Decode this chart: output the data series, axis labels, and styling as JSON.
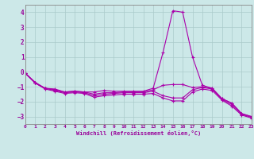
{
  "xlabel": "Windchill (Refroidissement éolien,°C)",
  "bg_color": "#cce8e8",
  "grid_color": "#aacaca",
  "line_color": "#aa00aa",
  "x_range": [
    0,
    23
  ],
  "y_range": [
    -3.5,
    4.5
  ],
  "yticks": [
    -3,
    -2,
    -1,
    0,
    1,
    2,
    3,
    4
  ],
  "xticks": [
    0,
    1,
    2,
    3,
    4,
    5,
    6,
    7,
    8,
    9,
    10,
    11,
    12,
    13,
    14,
    15,
    16,
    17,
    18,
    19,
    20,
    21,
    22,
    23
  ],
  "series": [
    [
      0,
      -0.1,
      1,
      -0.7,
      2,
      -1.1,
      3,
      -1.15,
      4,
      -1.35,
      5,
      -1.3,
      6,
      -1.35,
      7,
      -1.35,
      8,
      -1.25,
      9,
      -1.3,
      10,
      -1.3,
      11,
      -1.3,
      12,
      -1.3,
      13,
      -1.1,
      14,
      1.3,
      15,
      4.1,
      16,
      4.0,
      17,
      1.0,
      18,
      -0.9,
      19,
      -1.1,
      20,
      -1.8,
      21,
      -2.1,
      22,
      -2.8,
      23,
      -3.0
    ],
    [
      0,
      -0.1,
      1,
      -0.75,
      2,
      -1.1,
      3,
      -1.2,
      4,
      -1.35,
      5,
      -1.3,
      6,
      -1.35,
      7,
      -1.5,
      8,
      -1.4,
      9,
      -1.4,
      10,
      -1.35,
      11,
      -1.35,
      12,
      -1.35,
      13,
      -1.2,
      14,
      -0.9,
      15,
      -0.85,
      16,
      -0.85,
      17,
      -1.05,
      18,
      -1.0,
      19,
      -1.1,
      20,
      -1.8,
      21,
      -2.1,
      22,
      -2.8,
      23,
      -3.0
    ],
    [
      0,
      -0.1,
      1,
      -0.75,
      2,
      -1.1,
      3,
      -1.25,
      4,
      -1.4,
      5,
      -1.35,
      6,
      -1.4,
      7,
      -1.6,
      8,
      -1.5,
      9,
      -1.45,
      10,
      -1.4,
      11,
      -1.4,
      12,
      -1.4,
      13,
      -1.3,
      14,
      -1.6,
      15,
      -1.75,
      16,
      -1.75,
      17,
      -1.2,
      18,
      -1.05,
      19,
      -1.15,
      20,
      -1.85,
      21,
      -2.2,
      22,
      -2.85,
      23,
      -3.05
    ],
    [
      0,
      -0.1,
      1,
      -0.75,
      2,
      -1.15,
      3,
      -1.3,
      4,
      -1.45,
      5,
      -1.4,
      6,
      -1.45,
      7,
      -1.7,
      8,
      -1.6,
      9,
      -1.55,
      10,
      -1.5,
      11,
      -1.5,
      12,
      -1.5,
      13,
      -1.45,
      14,
      -1.75,
      15,
      -1.95,
      16,
      -1.95,
      17,
      -1.35,
      18,
      -1.15,
      19,
      -1.25,
      20,
      -1.9,
      21,
      -2.3,
      22,
      -2.9,
      23,
      -3.1
    ]
  ]
}
